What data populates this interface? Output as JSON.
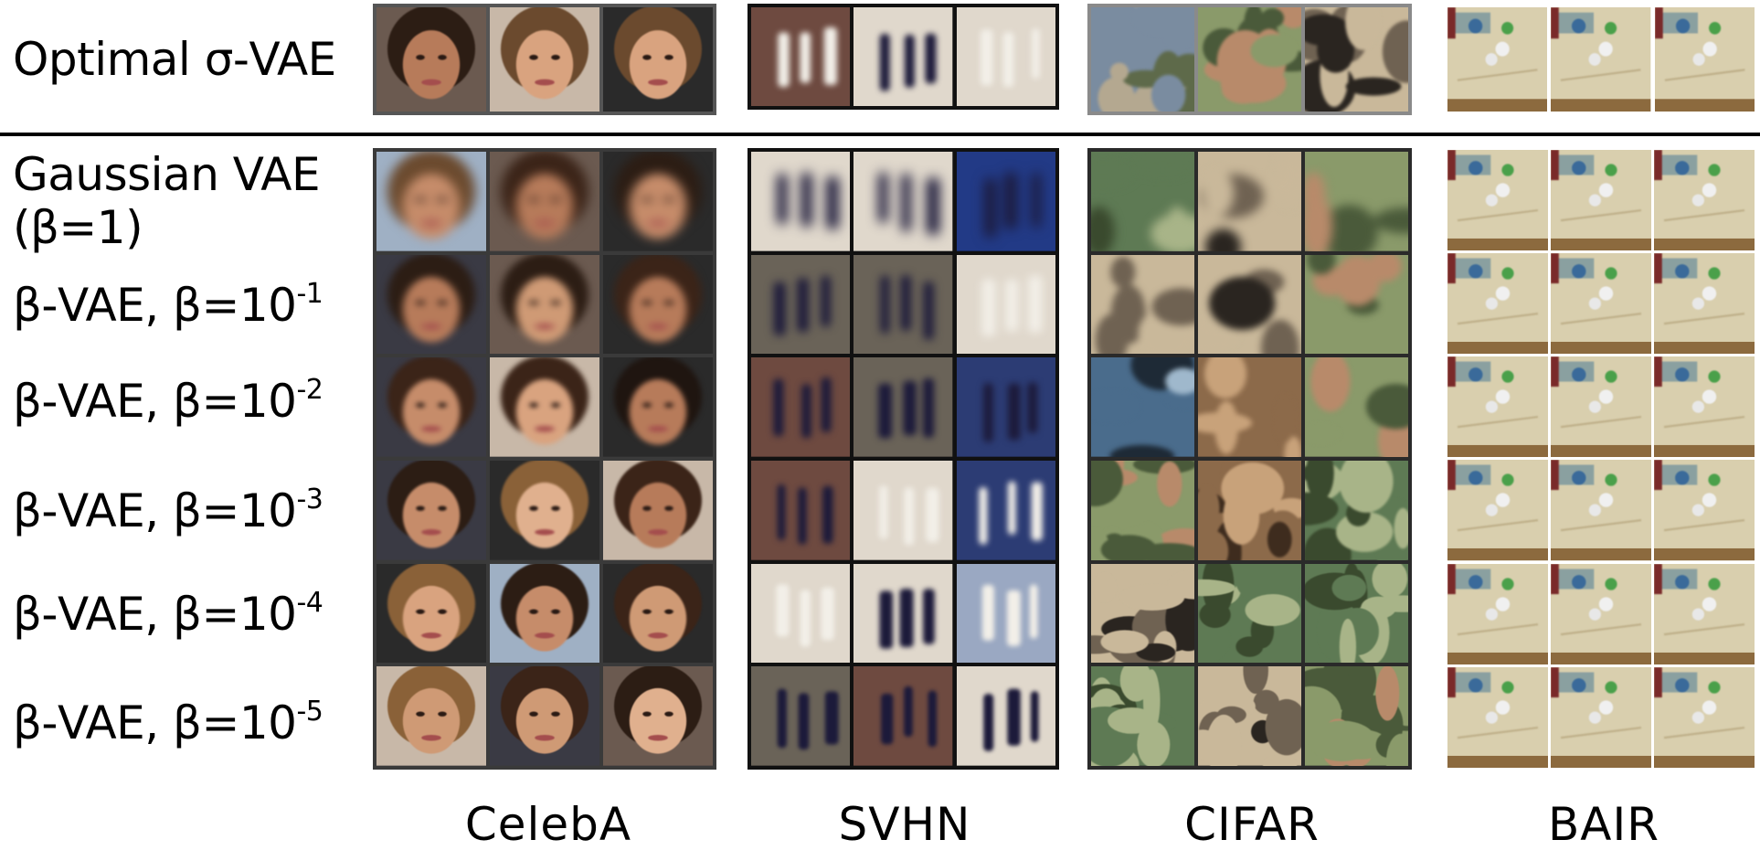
{
  "rows": {
    "top": {
      "label": "Optimal σ-VAE"
    },
    "gaussian": {
      "label_line1": "Gaussian VAE",
      "label_line2": "(β=1)"
    },
    "beta": [
      {
        "prefix": "β-VAE, β=10",
        "exp": "-1"
      },
      {
        "prefix": "β-VAE, β=10",
        "exp": "-2"
      },
      {
        "prefix": "β-VAE, β=10",
        "exp": "-3"
      },
      {
        "prefix": "β-VAE, β=10",
        "exp": "-4"
      },
      {
        "prefix": "β-VAE, β=10",
        "exp": "-5"
      }
    ]
  },
  "datasets": [
    {
      "name": "CelebA"
    },
    {
      "name": "SVHN"
    },
    {
      "name": "CIFAR"
    },
    {
      "name": "BAIR"
    }
  ],
  "colors": {
    "celeba_frame": "#3a3a3a",
    "svhn_frame": "#111111",
    "cifar_frame": "#2a2a2a",
    "cifar_top_frame": "#8a8a8a",
    "bair_frame": "#ffffff"
  }
}
